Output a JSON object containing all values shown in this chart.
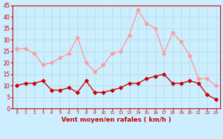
{
  "x": [
    0,
    1,
    2,
    3,
    4,
    5,
    6,
    7,
    8,
    9,
    10,
    11,
    12,
    13,
    14,
    15,
    16,
    17,
    18,
    19,
    20,
    21,
    22,
    23
  ],
  "wind_avg": [
    10,
    11,
    11,
    12,
    8,
    8,
    9,
    7,
    12,
    7,
    7,
    8,
    9,
    11,
    11,
    13,
    14,
    15,
    11,
    11,
    12,
    11,
    6,
    4
  ],
  "wind_gust": [
    26,
    26,
    24,
    19,
    20,
    22,
    24,
    31,
    20,
    16,
    19,
    24,
    25,
    32,
    43,
    37,
    35,
    24,
    33,
    29,
    23,
    13,
    13,
    10
  ],
  "avg_color": "#cc0000",
  "gust_color": "#ff9999",
  "bg_color": "#cceeff",
  "grid_color": "#aadddd",
  "xlabel": "Vent moyen/en rafales ( km/h )",
  "ylabel": "",
  "ylim": [
    0,
    45
  ],
  "yticks": [
    0,
    5,
    10,
    15,
    20,
    25,
    30,
    35,
    40,
    45
  ],
  "xticks": [
    0,
    1,
    2,
    3,
    4,
    5,
    6,
    7,
    8,
    9,
    10,
    11,
    12,
    13,
    14,
    15,
    16,
    17,
    18,
    19,
    20,
    21,
    22,
    23
  ],
  "marker": "D",
  "markersize": 2.5
}
